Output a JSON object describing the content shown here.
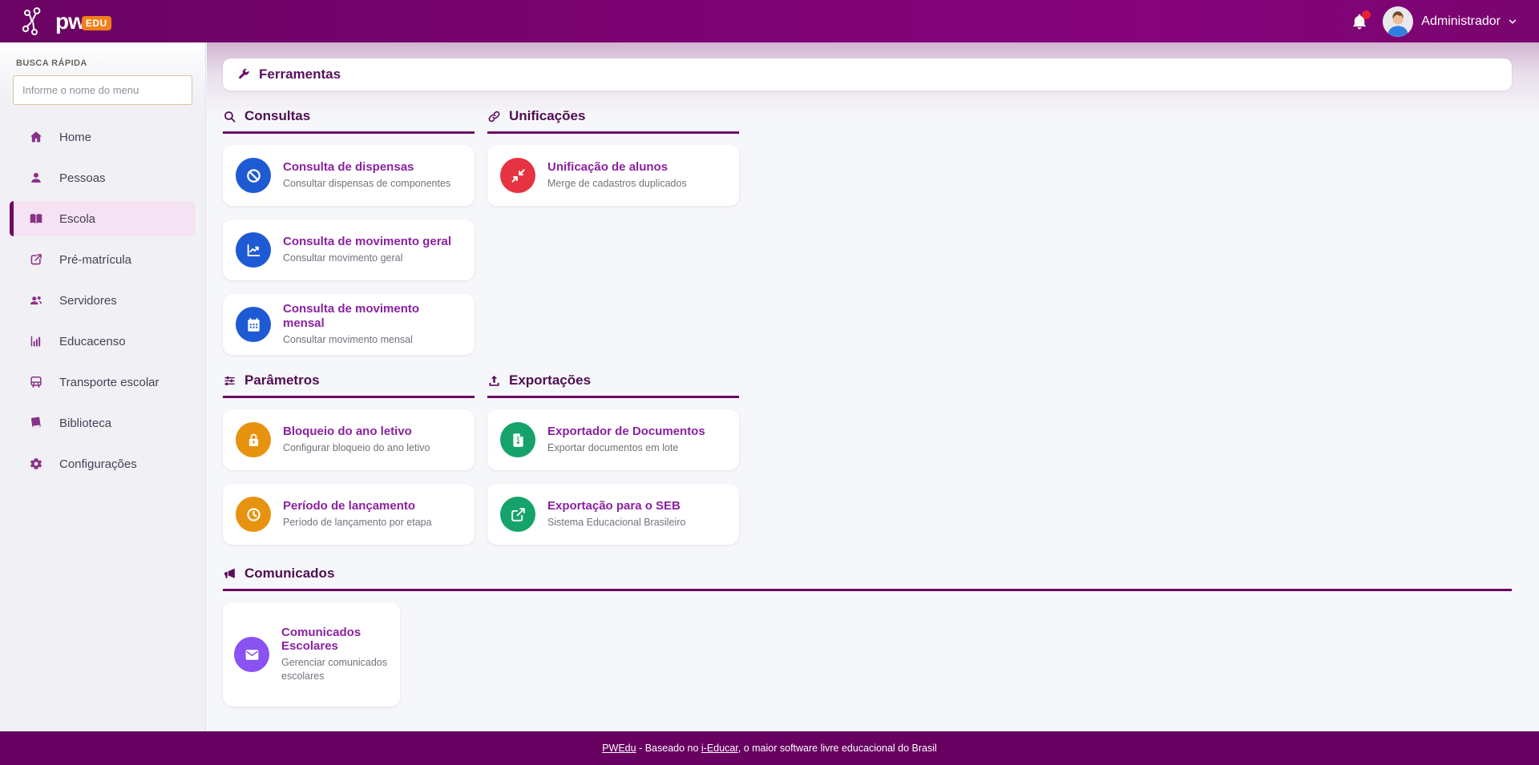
{
  "topbar": {
    "logo_text": "pw",
    "logo_badge": "EDU",
    "user_name": "Administrador"
  },
  "sidebar": {
    "search_label": "BUSCA RÁPIDA",
    "search_placeholder": "Informe o nome do menu",
    "items": [
      {
        "label": "Home",
        "icon": "home",
        "active": false
      },
      {
        "label": "Pessoas",
        "icon": "user",
        "active": false
      },
      {
        "label": "Escola",
        "icon": "book-open",
        "active": true
      },
      {
        "label": "Pré-matrícula",
        "icon": "share",
        "active": false
      },
      {
        "label": "Servidores",
        "icon": "users",
        "active": false
      },
      {
        "label": "Educacenso",
        "icon": "chart-bar",
        "active": false
      },
      {
        "label": "Transporte escolar",
        "icon": "bus",
        "active": false
      },
      {
        "label": "Biblioteca",
        "icon": "book",
        "active": false
      },
      {
        "label": "Configurações",
        "icon": "gear",
        "active": false
      }
    ]
  },
  "page": {
    "title": "Ferramentas"
  },
  "sections": [
    {
      "title": "Consultas",
      "icon": "search",
      "cards": [
        {
          "title": "Consulta de dispensas",
          "subtitle": "Consultar dispensas de componentes",
          "icon": "ban",
          "color": "#1e5ad3"
        },
        {
          "title": "Consulta de movimento geral",
          "subtitle": "Consultar movimento geral",
          "icon": "chart-line",
          "color": "#1e5ad3"
        },
        {
          "title": "Consulta de movimento mensal",
          "subtitle": "Consultar movimento mensal",
          "icon": "calendar",
          "color": "#1e5ad3"
        }
      ]
    },
    {
      "title": "Unificações",
      "icon": "link",
      "cards": [
        {
          "title": "Unificação de alunos",
          "subtitle": "Merge de cadastros duplicados",
          "icon": "compress",
          "color": "#e63341"
        }
      ]
    },
    {
      "title": "Parâmetros",
      "icon": "sliders",
      "cards": [
        {
          "title": "Bloqueio do ano letivo",
          "subtitle": "Configurar bloqueio do ano letivo",
          "icon": "lock",
          "color": "#e8930f"
        },
        {
          "title": "Período de lançamento",
          "subtitle": "Período de lançamento por etapa",
          "icon": "clock",
          "color": "#e8930f"
        }
      ]
    },
    {
      "title": "Exportações",
      "icon": "upload",
      "cards": [
        {
          "title": "Exportador de Documentos",
          "subtitle": "Exportar documentos em lote",
          "icon": "file-archive",
          "color": "#16a36b"
        },
        {
          "title": "Exportação para o SEB",
          "subtitle": "Sistema Educacional Brasileiro",
          "icon": "external-link",
          "color": "#16a36b"
        }
      ]
    },
    {
      "title": "Comunicados",
      "icon": "megaphone",
      "cards": [
        {
          "title": "Comunicados Escolares",
          "subtitle": "Gerenciar comunicados escolares",
          "icon": "envelope",
          "color": "#8a52f2"
        }
      ]
    }
  ],
  "footer": {
    "link1": "PWEdu",
    "text1": " - Baseado no ",
    "link2": "i-Educar",
    "text2": ", o maior software livre educacional do Brasil"
  },
  "colors": {
    "topbar_bg": "#75036c",
    "footer_bg": "#670060",
    "accent": "#6b0a60",
    "section_title": "#4f0e52",
    "card_title": "#8b21a0",
    "card_subtitle": "#72727e",
    "sidebar_icon": "#8a3189",
    "sidebar_text": "#453f54",
    "notification_dot": "#e8212e",
    "logo_badge_bg": "#f08019",
    "search_border": "#dcc49b"
  }
}
